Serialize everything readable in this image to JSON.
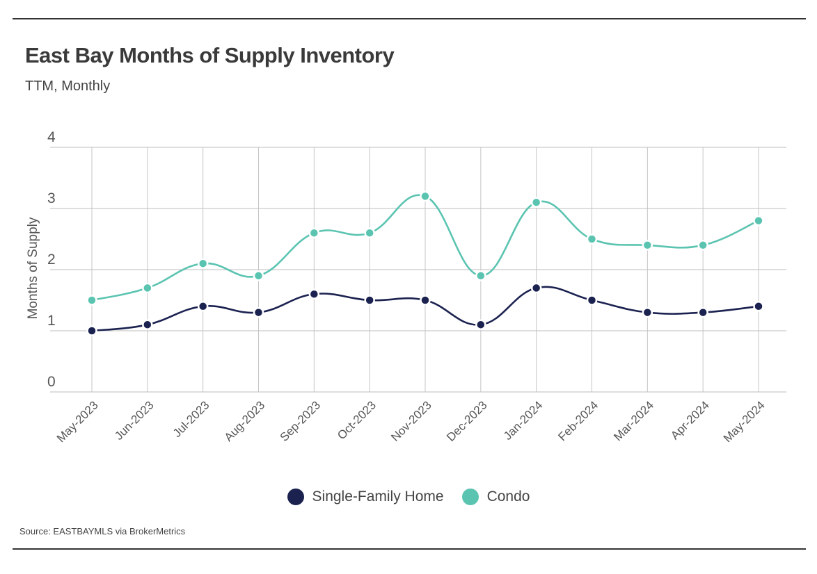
{
  "chart_data": {
    "type": "line",
    "title": "East Bay Months of Supply Inventory",
    "subtitle": "TTM, Monthly",
    "xlabel": "",
    "ylabel": "Months of Supply",
    "ylim": [
      0,
      4
    ],
    "yticks": [
      0,
      1,
      2,
      3,
      4
    ],
    "grid": true,
    "legend_position": "bottom",
    "categories": [
      "May-2023",
      "Jun-2023",
      "Jul-2023",
      "Aug-2023",
      "Sep-2023",
      "Oct-2023",
      "Nov-2023",
      "Dec-2023",
      "Jan-2024",
      "Feb-2024",
      "Mar-2024",
      "Apr-2024",
      "May-2024"
    ],
    "series": [
      {
        "name": "Single-Family Home",
        "color": "#1b2250",
        "values": [
          1.0,
          1.1,
          1.4,
          1.3,
          1.6,
          1.5,
          1.5,
          1.1,
          1.7,
          1.5,
          1.3,
          1.3,
          1.4
        ]
      },
      {
        "name": "Condo",
        "color": "#5bc4b1",
        "values": [
          1.5,
          1.7,
          2.1,
          1.9,
          2.6,
          2.6,
          3.2,
          1.9,
          3.1,
          2.5,
          2.4,
          2.4,
          2.8
        ]
      }
    ],
    "source": "Source:  EASTBAYMLS via BrokerMetrics"
  }
}
